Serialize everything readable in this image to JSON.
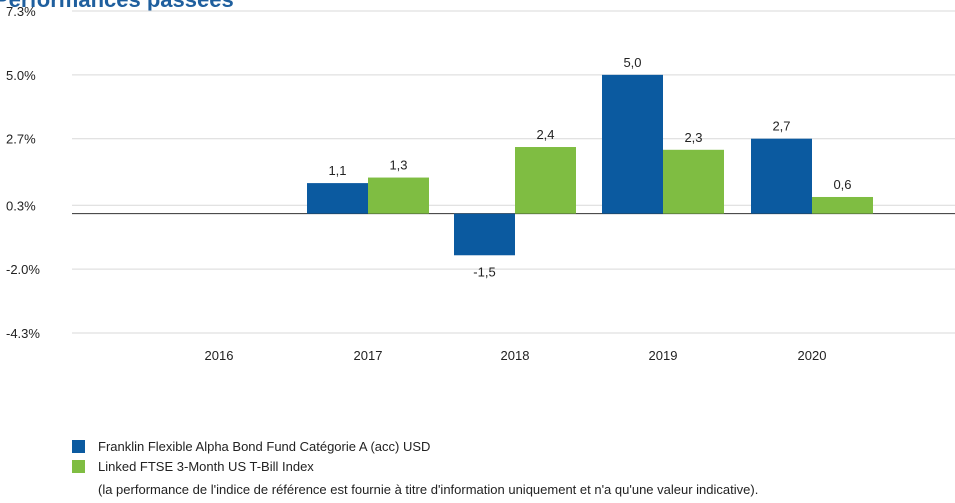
{
  "chart_data": {
    "type": "bar",
    "title": "Performances passées",
    "xlabel": "",
    "ylabel": "",
    "categories": [
      "2016",
      "2017",
      "2018",
      "2019",
      "2020"
    ],
    "ylim": [
      -4.3,
      7.3
    ],
    "yticks": [
      7.3,
      5.0,
      2.7,
      0.3,
      -2.0,
      -4.3
    ],
    "ytick_labels": [
      "7.3%",
      "5.0%",
      "2.7%",
      "0.3%",
      "-2.0%",
      "-4.3%"
    ],
    "series": [
      {
        "name": "Franklin Flexible Alpha Bond Fund Catégorie A (acc) USD",
        "color": "#0b5aa0",
        "values": [
          null,
          1.1,
          -1.5,
          5.0,
          2.7
        ],
        "labels": [
          "",
          "1,1",
          "-1,5",
          "5,0",
          "2,7"
        ]
      },
      {
        "name": "Linked FTSE 3-Month US T-Bill Index",
        "color": "#7fbd42",
        "values": [
          null,
          1.3,
          2.4,
          2.3,
          0.6
        ],
        "labels": [
          "",
          "1,3",
          "2,4",
          "2,3",
          "0,6"
        ]
      }
    ],
    "grid": true,
    "legend_position": "bottom-left"
  },
  "legend": {
    "note": "(la performance de l'indice de référence est fournie à titre d'information uniquement et n'a qu'une valeur indicative)."
  }
}
